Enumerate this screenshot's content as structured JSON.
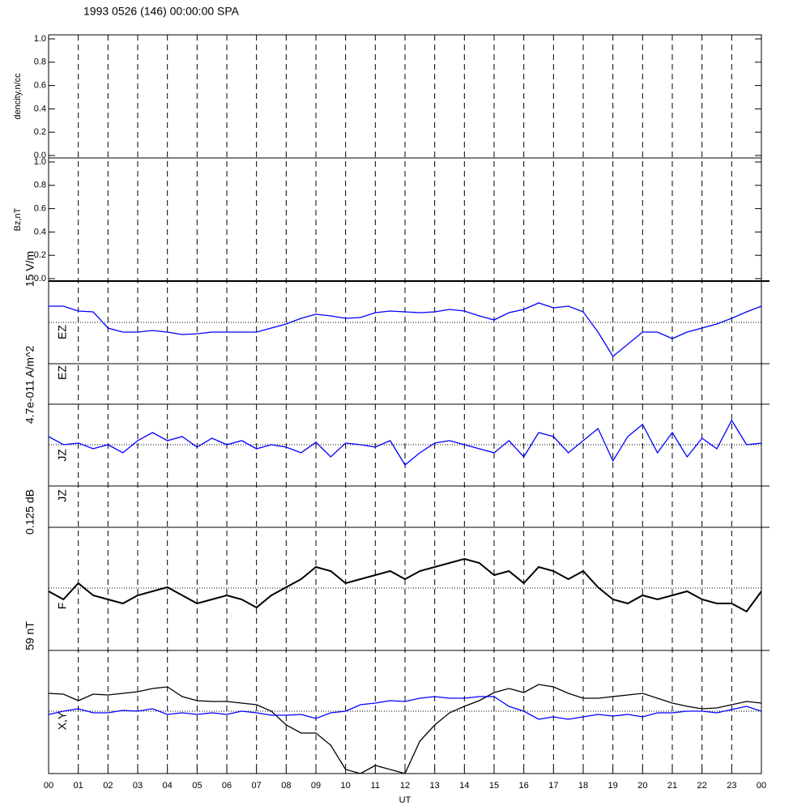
{
  "chart_data": [
    {
      "type": "line",
      "title": "1993 0526 (146) 00:00:00 SPA",
      "ylabel": "dencity,n/cc",
      "ylim": [
        0,
        1
      ],
      "yticks": [
        {
          "value": 0,
          "label": "0.0"
        },
        {
          "value": 0.2,
          "label": "0.2"
        },
        {
          "value": 0.4,
          "label": "0.4"
        },
        {
          "value": 0.6,
          "label": "0.6"
        },
        {
          "value": 0.8,
          "label": "0.8"
        },
        {
          "value": 1,
          "label": "1.0"
        }
      ]
    },
    {
      "type": "line",
      "ylabel": "Bz,nT",
      "ylim": [
        0,
        1
      ],
      "yticks": [
        {
          "value": 0,
          "label": "0.0"
        },
        {
          "value": 0.2,
          "label": "0.2"
        },
        {
          "value": 0.4,
          "label": "0.4"
        },
        {
          "value": 0.6,
          "label": "0.6"
        },
        {
          "value": 0.8,
          "label": "0.8"
        },
        {
          "value": 1,
          "label": "1.0"
        }
      ]
    },
    {
      "type": "line",
      "ylabel": "15 V/m",
      "trace_labels": [
        "EZ",
        "EZ"
      ],
      "ylim": [
        -50,
        50
      ],
      "series": [
        {
          "color": "#0000ff",
          "values": [
            20,
            20,
            14,
            13,
            -7,
            -12,
            -12,
            -10,
            -12,
            -15,
            -14,
            -12,
            -12,
            -12,
            -12,
            -7,
            -2,
            5,
            10,
            8,
            5,
            6,
            12,
            14,
            13,
            12,
            13,
            16,
            14,
            8,
            3,
            12,
            16,
            24,
            18,
            20,
            13,
            -12,
            -42,
            -27,
            -12,
            -12,
            -20,
            -12,
            -7,
            -2,
            5,
            13,
            20
          ]
        }
      ]
    },
    {
      "type": "line",
      "ylabel": "4.7e-011 A/m^2",
      "trace_labels": [
        "JZ",
        "JZ"
      ],
      "ylim": [
        -50,
        50
      ],
      "series": [
        {
          "color": "#0000ff",
          "values": [
            10,
            0,
            2,
            -5,
            0,
            -10,
            5,
            15,
            5,
            10,
            -3,
            8,
            0,
            5,
            -5,
            0,
            -3,
            -10,
            3,
            -15,
            2,
            0,
            -3,
            5,
            -25,
            -10,
            2,
            5,
            0,
            -5,
            -10,
            5,
            -15,
            15,
            10,
            -10,
            5,
            20,
            -20,
            10,
            25,
            -10,
            15,
            -15,
            8,
            -5,
            30,
            0,
            2
          ]
        }
      ]
    },
    {
      "type": "line",
      "ylabel": "0.125 dB",
      "trace_labels": [
        "F"
      ],
      "ylim": [
        -75,
        75
      ],
      "series": [
        {
          "color": "#000000",
          "values": [
            -4,
            -14,
            6,
            -9,
            -14,
            -19,
            -9,
            -4,
            1,
            -9,
            -19,
            -14,
            -9,
            -14,
            -24,
            -9,
            1,
            11,
            26,
            21,
            6,
            11,
            16,
            21,
            11,
            21,
            26,
            31,
            36,
            31,
            16,
            21,
            6,
            26,
            21,
            11,
            21,
            1,
            -14,
            -19,
            -9,
            -14,
            -9,
            -4,
            -14,
            -19,
            -19,
            -29,
            -4
          ]
        }
      ]
    },
    {
      "type": "line",
      "ylabel": "59 nT",
      "trace_labels": [
        "X,Y"
      ],
      "ylim": [
        -75,
        75
      ],
      "xlabel": "UT",
      "xlim": [
        0,
        24
      ],
      "x": [
        0,
        0.5,
        1,
        1.5,
        2,
        2.5,
        3,
        3.5,
        4,
        4.5,
        5,
        5.5,
        6,
        6.5,
        7,
        7.5,
        8,
        8.5,
        9,
        9.5,
        10,
        10.5,
        11,
        11.5,
        12,
        12.5,
        13,
        13.5,
        14,
        14.5,
        15,
        15.5,
        16,
        16.5,
        17,
        17.5,
        18,
        18.5,
        19,
        19.5,
        20,
        20.5,
        21,
        21.5,
        22,
        22.5,
        23,
        23.5,
        24
      ],
      "xticks": [
        {
          "value": 0,
          "label": "00"
        },
        {
          "value": 1,
          "label": "01"
        },
        {
          "value": 2,
          "label": "02"
        },
        {
          "value": 3,
          "label": "03"
        },
        {
          "value": 4,
          "label": "04"
        },
        {
          "value": 5,
          "label": "05"
        },
        {
          "value": 6,
          "label": "06"
        },
        {
          "value": 7,
          "label": "07"
        },
        {
          "value": 8,
          "label": "08"
        },
        {
          "value": 9,
          "label": "09"
        },
        {
          "value": 10,
          "label": "10"
        },
        {
          "value": 11,
          "label": "11"
        },
        {
          "value": 12,
          "label": "12"
        },
        {
          "value": 13,
          "label": "13"
        },
        {
          "value": 14,
          "label": "14"
        },
        {
          "value": 15,
          "label": "15"
        },
        {
          "value": 16,
          "label": "16"
        },
        {
          "value": 17,
          "label": "17"
        },
        {
          "value": 18,
          "label": "18"
        },
        {
          "value": 19,
          "label": "19"
        },
        {
          "value": 20,
          "label": "20"
        },
        {
          "value": 21,
          "label": "21"
        },
        {
          "value": 22,
          "label": "22"
        },
        {
          "value": 23,
          "label": "23"
        },
        {
          "value": 24,
          "label": "00"
        }
      ],
      "series": [
        {
          "color": "#000000",
          "values": [
            22,
            21,
            13,
            21,
            20,
            22,
            24,
            28,
            30,
            18,
            13,
            12,
            12,
            10,
            8,
            0,
            -17,
            -27,
            -27,
            -42,
            -72,
            -77,
            -67,
            -72,
            -77,
            -37,
            -17,
            -2,
            6,
            13,
            23,
            28,
            23,
            33,
            30,
            22,
            16,
            16,
            18,
            20,
            22,
            16,
            10,
            6,
            3,
            4,
            8,
            12,
            10
          ]
        },
        {
          "color": "#0000ff",
          "values": [
            -4,
            0,
            3,
            -2,
            -2,
            1,
            0,
            3,
            -4,
            -2,
            -4,
            -2,
            -4,
            0,
            -2,
            -5,
            -5,
            -4,
            -9,
            -2,
            0,
            8,
            10,
            13,
            12,
            16,
            18,
            16,
            16,
            18,
            18,
            6,
            0,
            -10,
            -7,
            -10,
            -7,
            -4,
            -6,
            -4,
            -7,
            -2,
            -2,
            0,
            0,
            -2,
            2,
            6,
            0
          ]
        }
      ]
    }
  ]
}
